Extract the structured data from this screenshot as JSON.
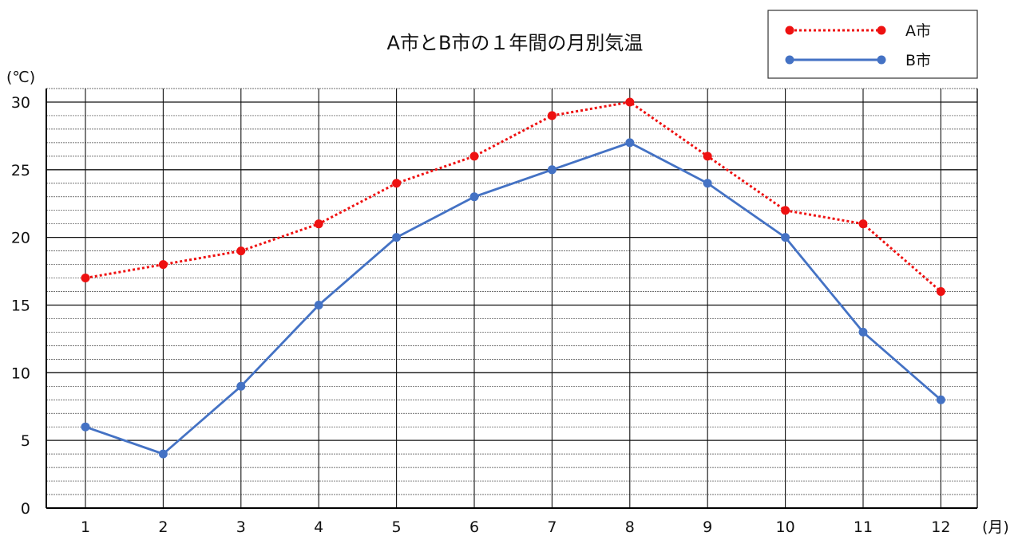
{
  "chart_data": {
    "type": "line",
    "title": "A市とB市の１年間の月別気温",
    "ylabel": "(℃)",
    "xlabel": "(月)",
    "categories": [
      "1",
      "2",
      "3",
      "4",
      "5",
      "6",
      "7",
      "8",
      "9",
      "10",
      "11",
      "12"
    ],
    "ylim": [
      0,
      31
    ],
    "yticks": [
      "0",
      "5",
      "10",
      "15",
      "20",
      "25",
      "30"
    ],
    "grid": true,
    "legend": "top-right",
    "series": [
      {
        "name": "A市",
        "color": "#ee1111",
        "style": "dotted",
        "values": [
          17,
          18,
          19,
          21,
          24,
          26,
          29,
          30,
          26,
          22,
          21,
          16
        ]
      },
      {
        "name": "B市",
        "color": "#4472c4",
        "style": "solid",
        "values": [
          6,
          4,
          9,
          15,
          20,
          23,
          25,
          27,
          24,
          20,
          13,
          8
        ]
      }
    ]
  }
}
